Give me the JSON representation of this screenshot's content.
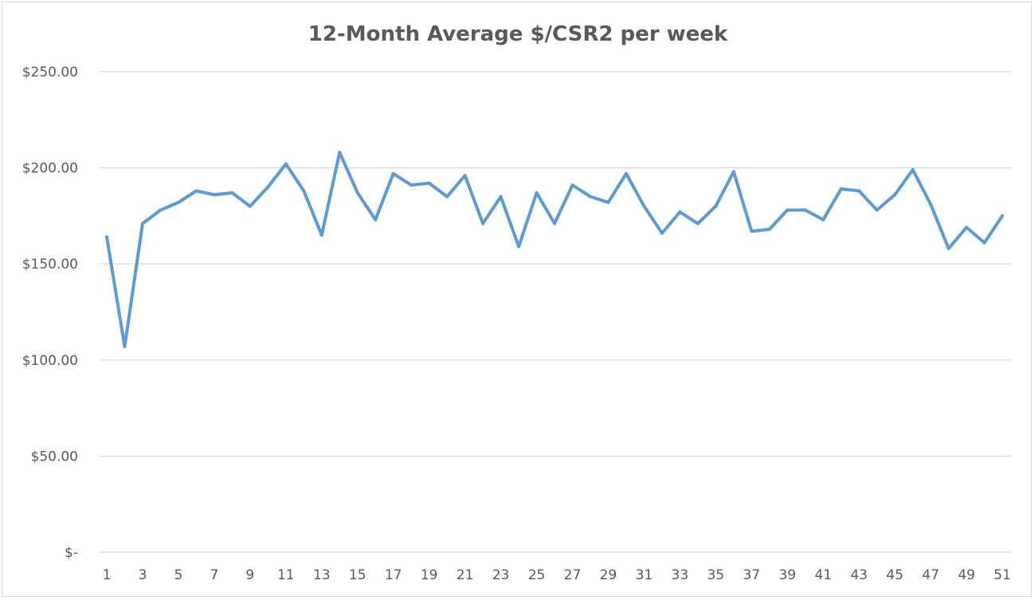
{
  "chart_data": {
    "type": "line",
    "title": "12-Month Average $/CSR2 per week",
    "xlabel": "",
    "ylabel": "",
    "x": [
      1,
      2,
      3,
      4,
      5,
      6,
      7,
      8,
      9,
      10,
      11,
      12,
      13,
      14,
      15,
      16,
      17,
      18,
      19,
      20,
      21,
      22,
      23,
      24,
      25,
      26,
      27,
      28,
      29,
      30,
      31,
      32,
      33,
      34,
      35,
      36,
      37,
      38,
      39,
      40,
      41,
      42,
      43,
      44,
      45,
      46,
      47,
      48,
      49,
      50,
      51
    ],
    "x_tick_labels": [
      "1",
      "3",
      "5",
      "7",
      "9",
      "11",
      "13",
      "15",
      "17",
      "19",
      "21",
      "23",
      "25",
      "27",
      "29",
      "31",
      "33",
      "35",
      "37",
      "39",
      "41",
      "43",
      "45",
      "47",
      "49",
      "51"
    ],
    "ylim": [
      0,
      250
    ],
    "y_ticks": [
      0,
      50,
      100,
      150,
      200,
      250
    ],
    "y_tick_labels": [
      "$-",
      "$50.00",
      "$100.00",
      "$150.00",
      "$200.00",
      "$250.00"
    ],
    "grid": true,
    "legend": "none",
    "series": [
      {
        "color": "#5b9bd5",
        "values": [
          164,
          107,
          171,
          178,
          182,
          188,
          186,
          187,
          180,
          190,
          202,
          188,
          165,
          208,
          187,
          173,
          197,
          191,
          192,
          185,
          196,
          171,
          185,
          159,
          187,
          171,
          191,
          185,
          182,
          197,
          180,
          166,
          177,
          171,
          180,
          198,
          167,
          168,
          178,
          178,
          173,
          189,
          188,
          178,
          186,
          199,
          181,
          158,
          169,
          161,
          175
        ]
      }
    ]
  }
}
